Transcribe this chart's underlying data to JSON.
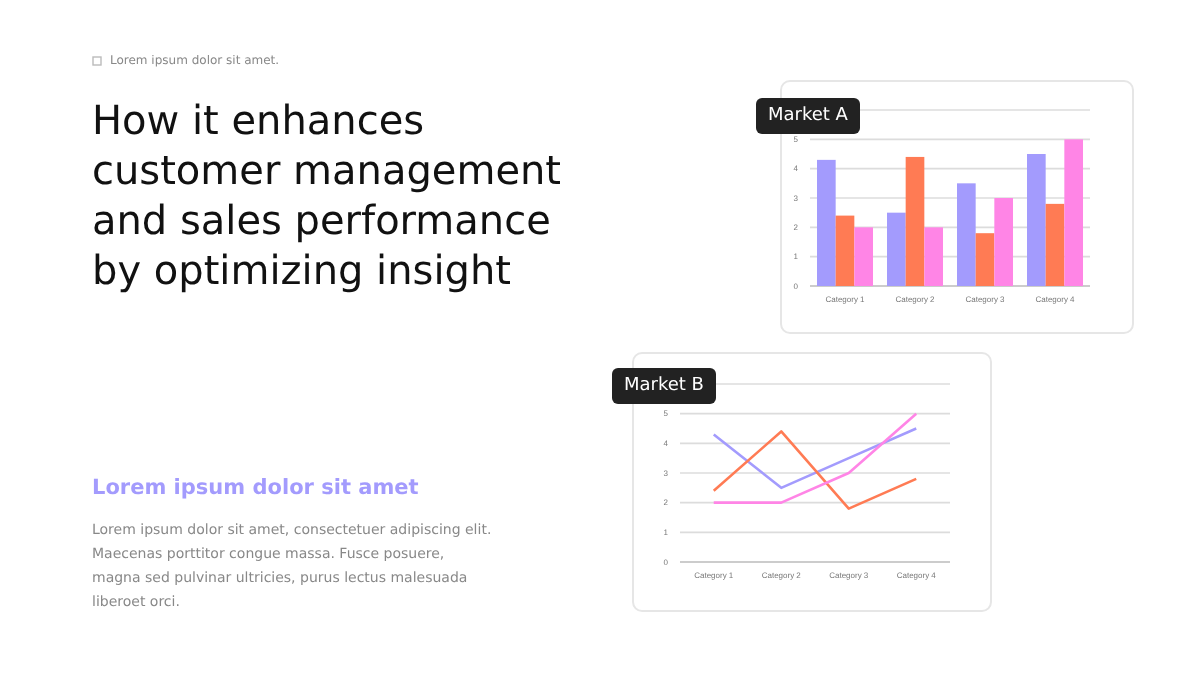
{
  "chart_data": [
    {
      "type": "other",
      "title": "How it enhances customer management and sales performance by optimizing insight",
      "subtitle": "Lorem ipsum dolor sit amet",
      "annotations": [
        "Lorem ipsum dolor sit amet.",
        "Lorem ipsum dolor sit amet, consectetuer adipiscing elit. Maecenas porttitor congue massa. Fusce posuere, magna sed pulvinar ultricies, purus lectus malesuada liberoet orci."
      ]
    },
    {
      "type": "bar",
      "title": "Market A",
      "categories": [
        "Category 1",
        "Category 2",
        "Category 3",
        "Category 4"
      ],
      "series": [
        {
          "color": "#a39bfd",
          "values": [
            4.3,
            2.5,
            3.5,
            4.5
          ]
        },
        {
          "color": "#ff7b54",
          "values": [
            2.4,
            4.4,
            1.8,
            2.8
          ]
        },
        {
          "color": "#ff85e6",
          "values": [
            2.0,
            2.0,
            3.0,
            5.0
          ]
        }
      ],
      "ylim": [
        0,
        6
      ],
      "yticks": [
        0,
        1,
        2,
        3,
        4,
        5,
        {
          "value": 6,
          "label": null
        }
      ],
      "grid": "y"
    },
    {
      "type": "line",
      "title": "Market B",
      "categories": [
        "Category 1",
        "Category 2",
        "Category 3",
        "Category 4"
      ],
      "series": [
        {
          "color": "#a39bfd",
          "values": [
            4.3,
            2.5,
            3.5,
            4.5
          ]
        },
        {
          "color": "#ff7b54",
          "values": [
            2.4,
            4.4,
            1.8,
            2.8
          ]
        },
        {
          "color": "#ff85e6",
          "values": [
            2.0,
            2.0,
            3.0,
            5.0
          ]
        }
      ],
      "ylim": [
        0,
        6
      ],
      "yticks": [
        0,
        1,
        2,
        3,
        4,
        5,
        {
          "value": 6,
          "label": null
        }
      ],
      "grid": "y",
      "marker": "none",
      "line_style": "solid"
    }
  ]
}
